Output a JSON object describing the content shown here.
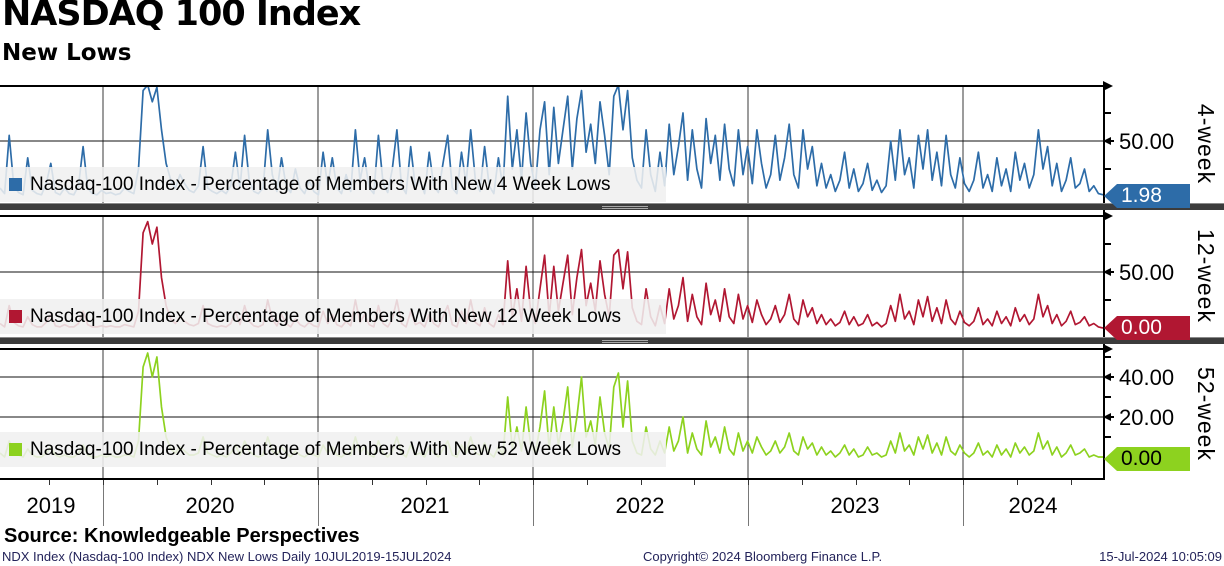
{
  "header": {
    "title": "NASDAQ 100 Index",
    "subtitle": "New Lows"
  },
  "source_line": "Source: Knowledgeable Perspectives",
  "footer": {
    "left": "NDX Index (Nasdaq-100 Index) NDX New Lows  Daily 10JUL2019-15JUL2024",
    "center": "Copyright© 2024 Bloomberg Finance L.P.",
    "right": "15-Jul-2024 10:05:09"
  },
  "x_axis": {
    "years": [
      "2019",
      "2020",
      "2021",
      "2022",
      "2023",
      "2024"
    ]
  },
  "panels": [
    {
      "period_label": "4-week",
      "legend": "Nasdaq-100 Index - Percentage of Members With New 4 Week Lows",
      "last_value": "1.98",
      "line_color": "#2d6ca8",
      "badge_color": "#2d6ca8",
      "badge_text_color": "#ffffff",
      "axis_ticks": [
        {
          "v": 25
        },
        {
          "v": 50,
          "label": "50.00"
        },
        {
          "v": 75
        }
      ]
    },
    {
      "period_label": "12-week",
      "legend": "Nasdaq-100 Index - Percentage of Members With New 12 Week Lows",
      "last_value": "0.00",
      "line_color": "#b11732",
      "badge_color": "#b11732",
      "badge_text_color": "#ffffff",
      "axis_ticks": [
        {
          "v": 25
        },
        {
          "v": 50,
          "label": "50.00"
        },
        {
          "v": 75
        }
      ]
    },
    {
      "period_label": "52-week",
      "legend": "Nasdaq-100 Index - Percentage of Members With New 52 Week Lows",
      "last_value": "0.00",
      "line_color": "#8dd21f",
      "badge_color": "#8dd21f",
      "badge_text_color": "#000000",
      "axis_ticks": [
        {
          "v": 10
        },
        {
          "v": 20,
          "label": "20.00"
        },
        {
          "v": 30
        },
        {
          "v": 40,
          "label": "40.00"
        },
        {
          "v": 50
        }
      ]
    }
  ],
  "chart_data": {
    "type": "line",
    "title": "NASDAQ 100 Index - New Lows",
    "x_range": {
      "start": "10JUL2019",
      "end": "15JUL2024",
      "frequency": "Daily"
    },
    "x_year_ticks": [
      "2019",
      "2020",
      "2021",
      "2022",
      "2023",
      "2024"
    ],
    "legend_position": "bottom-left overlay per panel",
    "grid": true,
    "series": [
      {
        "name": "Nasdaq-100 Index - Percentage of Members With New 4 Week Lows",
        "color": "#2d6ca8",
        "ylim": [
          0,
          100
        ],
        "last_value": 1.98,
        "values": [
          8,
          3,
          55,
          10,
          4,
          2,
          35,
          6,
          3,
          2,
          12,
          30,
          4,
          2,
          8,
          3,
          2,
          10,
          45,
          8,
          3,
          2,
          6,
          3,
          4,
          2,
          3,
          8,
          5,
          3,
          25,
          95,
          100,
          85,
          98,
          60,
          30,
          15,
          8,
          20,
          12,
          6,
          4,
          10,
          45,
          8,
          5,
          3,
          6,
          3,
          10,
          40,
          8,
          55,
          15,
          5,
          3,
          8,
          60,
          20,
          5,
          35,
          10,
          4,
          25,
          8,
          3,
          15,
          5,
          2,
          40,
          10,
          35,
          8,
          3,
          20,
          5,
          60,
          15,
          35,
          8,
          3,
          55,
          12,
          4,
          25,
          60,
          10,
          3,
          45,
          8,
          15,
          3,
          40,
          10,
          4,
          30,
          55,
          8,
          3,
          40,
          12,
          60,
          15,
          5,
          45,
          10,
          3,
          35,
          8,
          90,
          25,
          60,
          15,
          75,
          30,
          8,
          60,
          85,
          20,
          80,
          30,
          60,
          90,
          25,
          70,
          95,
          40,
          65,
          30,
          85,
          55,
          20,
          90,
          100,
          60,
          95,
          35,
          15,
          8,
          60,
          20,
          5,
          40,
          10,
          65,
          20,
          45,
          75,
          15,
          60,
          25,
          8,
          70,
          30,
          55,
          15,
          65,
          25,
          10,
          60,
          20,
          45,
          12,
          60,
          30,
          8,
          20,
          55,
          15,
          35,
          65,
          20,
          8,
          60,
          25,
          45,
          10,
          30,
          8,
          20,
          5,
          15,
          40,
          8,
          25,
          5,
          12,
          30,
          6,
          15,
          4,
          10,
          50,
          15,
          60,
          20,
          35,
          8,
          55,
          25,
          60,
          15,
          40,
          10,
          55,
          20,
          8,
          35,
          12,
          5,
          15,
          40,
          8,
          20,
          5,
          35,
          10,
          25,
          5,
          40,
          15,
          30,
          8,
          20,
          60,
          25,
          45,
          10,
          30,
          5,
          15,
          35,
          8,
          12,
          25,
          5,
          10,
          3,
          1.98
        ]
      },
      {
        "name": "Nasdaq-100 Index - Percentage of Members With New 12 Week Lows",
        "color": "#b11732",
        "ylim": [
          0,
          100
        ],
        "last_value": 0.0,
        "values": [
          4,
          1,
          20,
          5,
          2,
          1,
          10,
          3,
          1,
          1,
          5,
          12,
          2,
          1,
          3,
          1,
          1,
          4,
          15,
          3,
          1,
          1,
          2,
          1,
          2,
          1,
          1,
          3,
          2,
          1,
          15,
          85,
          95,
          75,
          90,
          45,
          20,
          8,
          4,
          10,
          6,
          3,
          2,
          4,
          20,
          4,
          2,
          1,
          2,
          1,
          4,
          15,
          3,
          20,
          6,
          2,
          1,
          3,
          25,
          8,
          2,
          12,
          4,
          1,
          8,
          3,
          1,
          5,
          2,
          1,
          15,
          4,
          12,
          3,
          1,
          6,
          2,
          25,
          5,
          12,
          3,
          1,
          20,
          4,
          1,
          8,
          25,
          4,
          1,
          15,
          3,
          5,
          1,
          12,
          4,
          1,
          10,
          20,
          3,
          1,
          15,
          4,
          25,
          5,
          2,
          18,
          4,
          1,
          12,
          3,
          60,
          10,
          35,
          6,
          55,
          15,
          4,
          35,
          65,
          10,
          55,
          15,
          40,
          65,
          12,
          45,
          70,
          20,
          40,
          15,
          60,
          30,
          10,
          65,
          70,
          35,
          68,
          18,
          6,
          3,
          35,
          10,
          2,
          20,
          4,
          35,
          8,
          20,
          45,
          6,
          30,
          10,
          3,
          40,
          12,
          25,
          6,
          35,
          10,
          4,
          30,
          8,
          20,
          5,
          25,
          12,
          3,
          8,
          20,
          5,
          12,
          30,
          8,
          3,
          25,
          10,
          18,
          4,
          12,
          3,
          8,
          2,
          5,
          15,
          3,
          10,
          2,
          4,
          12,
          2,
          5,
          1,
          4,
          20,
          6,
          30,
          8,
          15,
          3,
          25,
          10,
          28,
          6,
          18,
          4,
          25,
          8,
          3,
          15,
          5,
          2,
          6,
          18,
          3,
          8,
          2,
          15,
          4,
          10,
          2,
          18,
          6,
          12,
          3,
          8,
          30,
          10,
          20,
          4,
          12,
          2,
          6,
          15,
          3,
          5,
          10,
          2,
          4,
          1,
          0
        ]
      },
      {
        "name": "Nasdaq-100 Index - Percentage of Members With New 52 Week Lows",
        "color": "#8dd21f",
        "ylim": [
          0,
          55
        ],
        "last_value": 0.0,
        "values": [
          2,
          0,
          8,
          2,
          1,
          0,
          4,
          1,
          0,
          0,
          2,
          5,
          1,
          0,
          1,
          0,
          0,
          2,
          6,
          1,
          0,
          0,
          1,
          0,
          1,
          0,
          0,
          1,
          1,
          0,
          8,
          45,
          52,
          40,
          50,
          25,
          10,
          4,
          2,
          5,
          3,
          1,
          1,
          2,
          10,
          2,
          1,
          0,
          1,
          0,
          2,
          6,
          1,
          8,
          3,
          1,
          0,
          1,
          10,
          3,
          1,
          5,
          2,
          0,
          3,
          1,
          0,
          2,
          1,
          0,
          6,
          2,
          5,
          1,
          0,
          2,
          1,
          10,
          2,
          5,
          1,
          0,
          8,
          2,
          0,
          3,
          10,
          2,
          0,
          6,
          1,
          2,
          0,
          5,
          2,
          0,
          4,
          8,
          1,
          0,
          6,
          2,
          10,
          2,
          1,
          7,
          2,
          0,
          5,
          1,
          30,
          4,
          15,
          3,
          25,
          6,
          2,
          15,
          33,
          4,
          25,
          6,
          18,
          35,
          5,
          20,
          40,
          10,
          18,
          6,
          30,
          12,
          4,
          35,
          42,
          15,
          38,
          8,
          2,
          1,
          15,
          4,
          1,
          8,
          2,
          15,
          3,
          8,
          20,
          2,
          12,
          4,
          1,
          18,
          5,
          10,
          2,
          15,
          4,
          1,
          12,
          3,
          8,
          2,
          10,
          5,
          1,
          3,
          8,
          2,
          5,
          12,
          3,
          1,
          10,
          4,
          7,
          1,
          5,
          1,
          3,
          0,
          2,
          6,
          1,
          4,
          0,
          1,
          5,
          1,
          2,
          0,
          1,
          8,
          2,
          12,
          3,
          6,
          1,
          10,
          4,
          11,
          2,
          7,
          1,
          10,
          3,
          1,
          6,
          2,
          0,
          2,
          7,
          1,
          3,
          0,
          6,
          1,
          4,
          0,
          7,
          2,
          5,
          1,
          3,
          12,
          4,
          8,
          1,
          5,
          0,
          2,
          6,
          1,
          2,
          4,
          0,
          1,
          0,
          0
        ]
      }
    ]
  }
}
